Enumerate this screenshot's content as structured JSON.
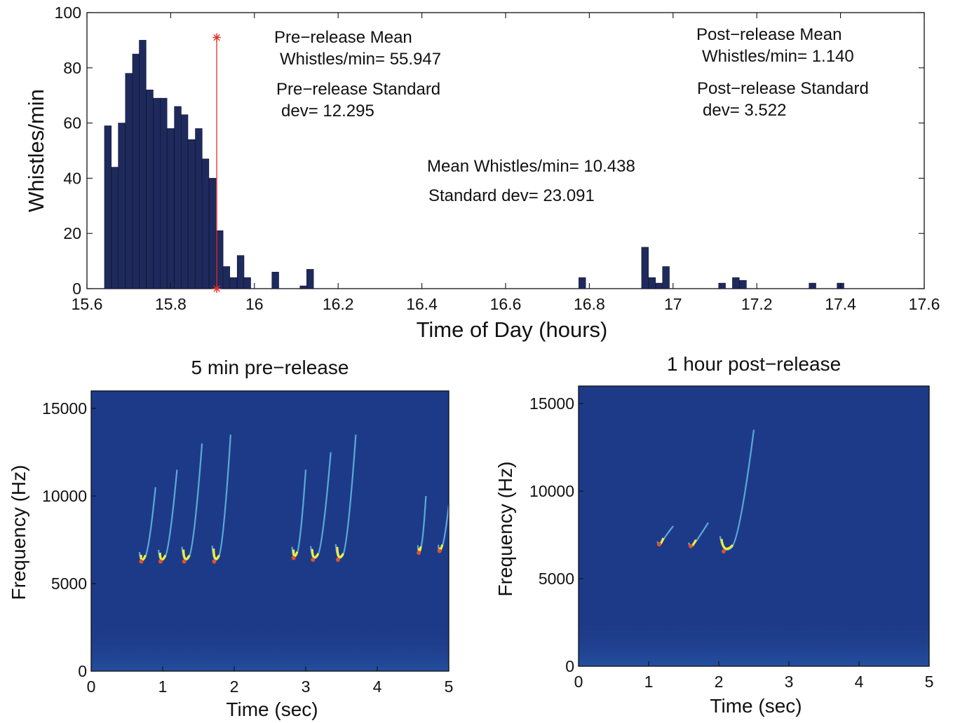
{
  "chart_data": [
    {
      "type": "bar",
      "xlabel": "Time of Day (hours)",
      "ylabel": "Whistles/min",
      "xlim": [
        15.6,
        17.6
      ],
      "ylim": [
        0,
        100
      ],
      "xticks": [
        "15.6",
        "15.8",
        "16",
        "16.2",
        "16.4",
        "16.6",
        "16.8",
        "17",
        "17.2",
        "17.4",
        "17.6"
      ],
      "yticks": [
        "0",
        "20",
        "40",
        "60",
        "80",
        "100"
      ],
      "bar_color": "#1f2a5c",
      "release_marker": {
        "x": 15.91,
        "y_top": 91,
        "color": "#e0302a"
      },
      "x": [
        15.65,
        15.667,
        15.683,
        15.7,
        15.717,
        15.733,
        15.75,
        15.767,
        15.783,
        15.8,
        15.817,
        15.833,
        15.85,
        15.867,
        15.883,
        15.9,
        15.917,
        15.933,
        15.95,
        15.967,
        15.983,
        16.05,
        16.117,
        16.133,
        16.783,
        16.933,
        16.95,
        16.967,
        16.983,
        17.117,
        17.15,
        17.167,
        17.333,
        17.4
      ],
      "values": [
        59,
        44,
        60,
        78,
        85,
        90,
        72,
        69,
        69,
        58,
        66,
        63,
        54,
        58,
        47,
        40,
        21,
        8,
        4,
        12,
        4,
        6,
        1,
        7,
        4,
        15,
        4,
        2,
        8,
        2,
        4,
        3,
        2,
        2
      ],
      "annotations": {
        "pre_mean_line1": "Pre−release Mean",
        "pre_mean_line2": "Whistles/min= 55.947",
        "pre_std_line1": "Pre−release Standard",
        "pre_std_line2": "dev= 12.295",
        "post_mean_line1": "Post−release Mean",
        "post_mean_line2": "Whistles/min= 1.140",
        "post_std_line1": "Post−release Standard",
        "post_std_line2": "dev= 3.522",
        "overall_mean": "Mean Whistles/min= 10.438",
        "overall_std": "Standard dev= 23.091"
      }
    },
    {
      "type": "heatmap",
      "title": "5 min pre−release",
      "xlabel": "Time (sec)",
      "ylabel": "Frequency (Hz)",
      "xlim": [
        0,
        5
      ],
      "ylim": [
        0,
        16000
      ],
      "xticks": [
        "0",
        "1",
        "2",
        "3",
        "4",
        "5"
      ],
      "yticks": [
        "0",
        "5000",
        "10000",
        "15000"
      ],
      "background_color": "#1d3a88",
      "whistles": [
        {
          "t_min": 0.7,
          "f_min": 6300,
          "t_end": 0.9,
          "f_end": 10500
        },
        {
          "t_min": 0.97,
          "f_min": 6300,
          "t_end": 1.2,
          "f_end": 11500
        },
        {
          "t_min": 1.3,
          "f_min": 6300,
          "t_end": 1.55,
          "f_end": 13000
        },
        {
          "t_min": 1.72,
          "f_min": 6300,
          "t_end": 1.95,
          "f_end": 13500
        },
        {
          "t_min": 2.83,
          "f_min": 6500,
          "t_end": 3.0,
          "f_end": 11500
        },
        {
          "t_min": 3.1,
          "f_min": 6400,
          "t_end": 3.35,
          "f_end": 12500
        },
        {
          "t_min": 3.45,
          "f_min": 6400,
          "t_end": 3.7,
          "f_end": 13500
        },
        {
          "t_min": 4.58,
          "f_min": 6800,
          "t_end": 4.68,
          "f_end": 10000
        },
        {
          "t_min": 4.87,
          "f_min": 6900,
          "t_end": 5.0,
          "f_end": 9500
        }
      ]
    },
    {
      "type": "heatmap",
      "title": "1 hour post−release",
      "xlabel": "Time (sec)",
      "ylabel": "Frequency (Hz)",
      "xlim": [
        0,
        5
      ],
      "ylim": [
        0,
        16000
      ],
      "xticks": [
        "0",
        "1",
        "2",
        "3",
        "4",
        "5"
      ],
      "yticks": [
        "0",
        "5000",
        "10000",
        "15000"
      ],
      "background_color": "#1d3a88",
      "whistles": [
        {
          "t_min": 1.15,
          "f_min": 7000,
          "t_end": 1.35,
          "f_end": 8000
        },
        {
          "t_min": 1.6,
          "f_min": 6900,
          "t_end": 1.85,
          "f_end": 8200
        },
        {
          "t_min": 2.07,
          "f_min": 6600,
          "t_end": 2.5,
          "f_end": 13500
        }
      ]
    }
  ]
}
